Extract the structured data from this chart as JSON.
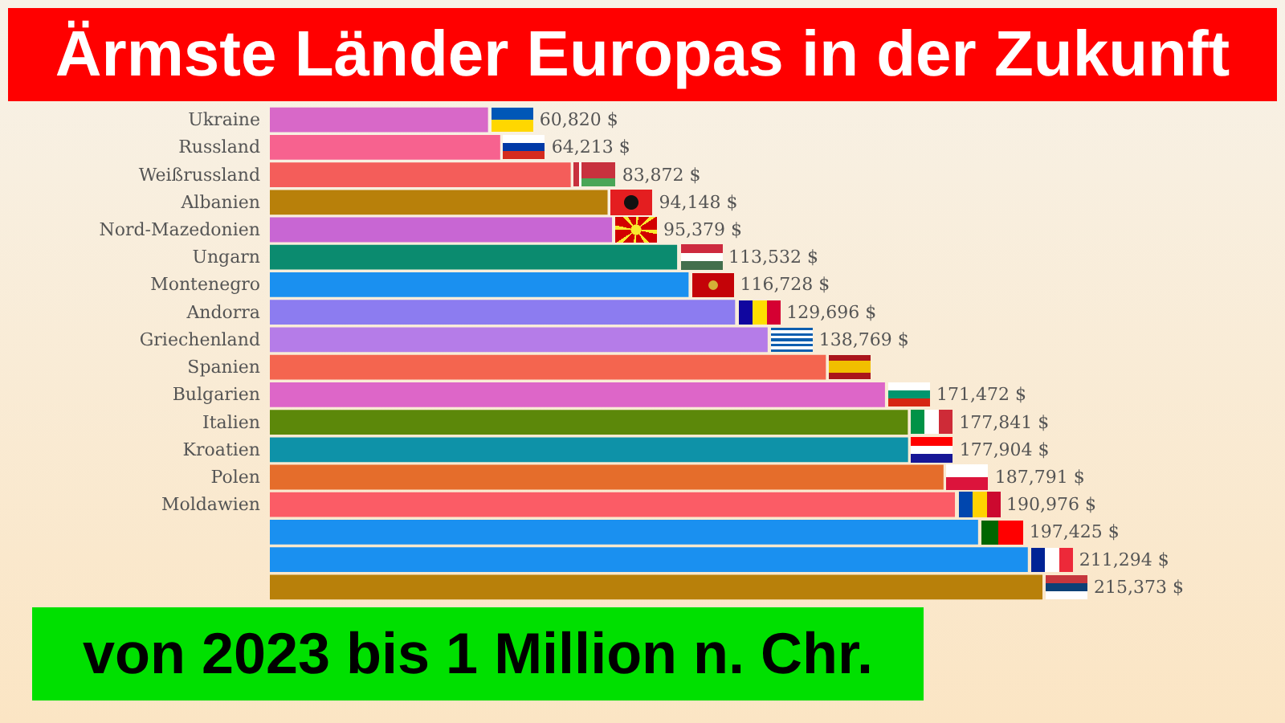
{
  "chart_data": {
    "type": "bar",
    "orientation": "horizontal",
    "title": "Ärmste Länder Europas in der Zukunft",
    "subtitle": "von 2023 bis 1 Million n. Chr.",
    "categories": [
      "Ukraine",
      "Russland",
      "Weißrussland",
      "Albanien",
      "Nord-Mazedonien",
      "Ungarn",
      "Montenegro",
      "Andorra",
      "Griechenland",
      "Spanien",
      "Bulgarien",
      "Italien",
      "Kroatien",
      "Polen",
      "Moldawien",
      null,
      null,
      null
    ],
    "values": [
      60820,
      64213,
      83872,
      94148,
      95379,
      113532,
      116728,
      129696,
      138769,
      155000,
      171472,
      177841,
      177904,
      187791,
      190976,
      197425,
      211294,
      215373
    ],
    "colors": [
      "#d868c8",
      "#f7628f",
      "#f45d5a",
      "#b8800a",
      "#c866d3",
      "#0b8b6f",
      "#1a90f0",
      "#8c7cf0",
      "#b57ce8",
      "#f4654f",
      "#dd66c8",
      "#5c880a",
      "#0e92a8",
      "#e56d2b",
      "#fb5c66",
      "#1a90f0",
      "#1a90f0",
      "#b8800a"
    ],
    "value_labels": [
      "60,820 $",
      "64,213 $",
      "83,872 $",
      "94,148 $",
      "95,379 $",
      "113,532 $",
      "116,728 $",
      "129,696 $",
      "138,769 $",
      null,
      "171,472 $",
      "177,841 $",
      "177,904 $",
      "187,791 $",
      "190,976 $",
      "197,425 $",
      "211,294 $",
      "215,373 $"
    ]
  }
}
